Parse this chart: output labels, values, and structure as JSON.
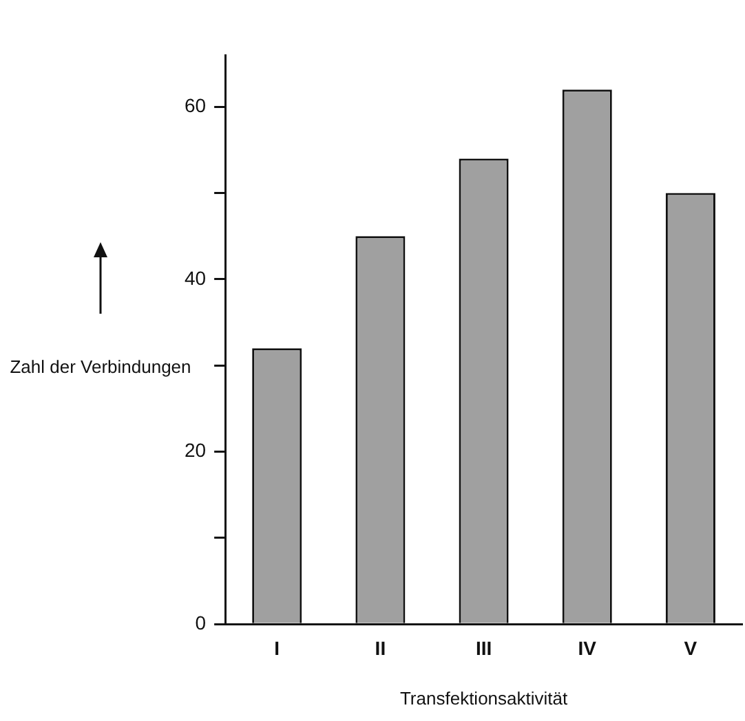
{
  "chart_data": {
    "type": "bar",
    "xlabel": "Transfektionsaktivität",
    "ylabel": "Zahl der Verbindungen",
    "categories": [
      "I",
      "II",
      "III",
      "IV",
      "V"
    ],
    "values": [
      32,
      45,
      54,
      62,
      50
    ],
    "color": "#a0a0a0",
    "ylim": [
      0,
      66
    ],
    "yticks": [
      0,
      {
        "value": 10,
        "label": null
      },
      20,
      {
        "value": 30,
        "label": null
      },
      40,
      {
        "value": 50,
        "label": null
      },
      60
    ],
    "grid": false,
    "legend": false
  }
}
